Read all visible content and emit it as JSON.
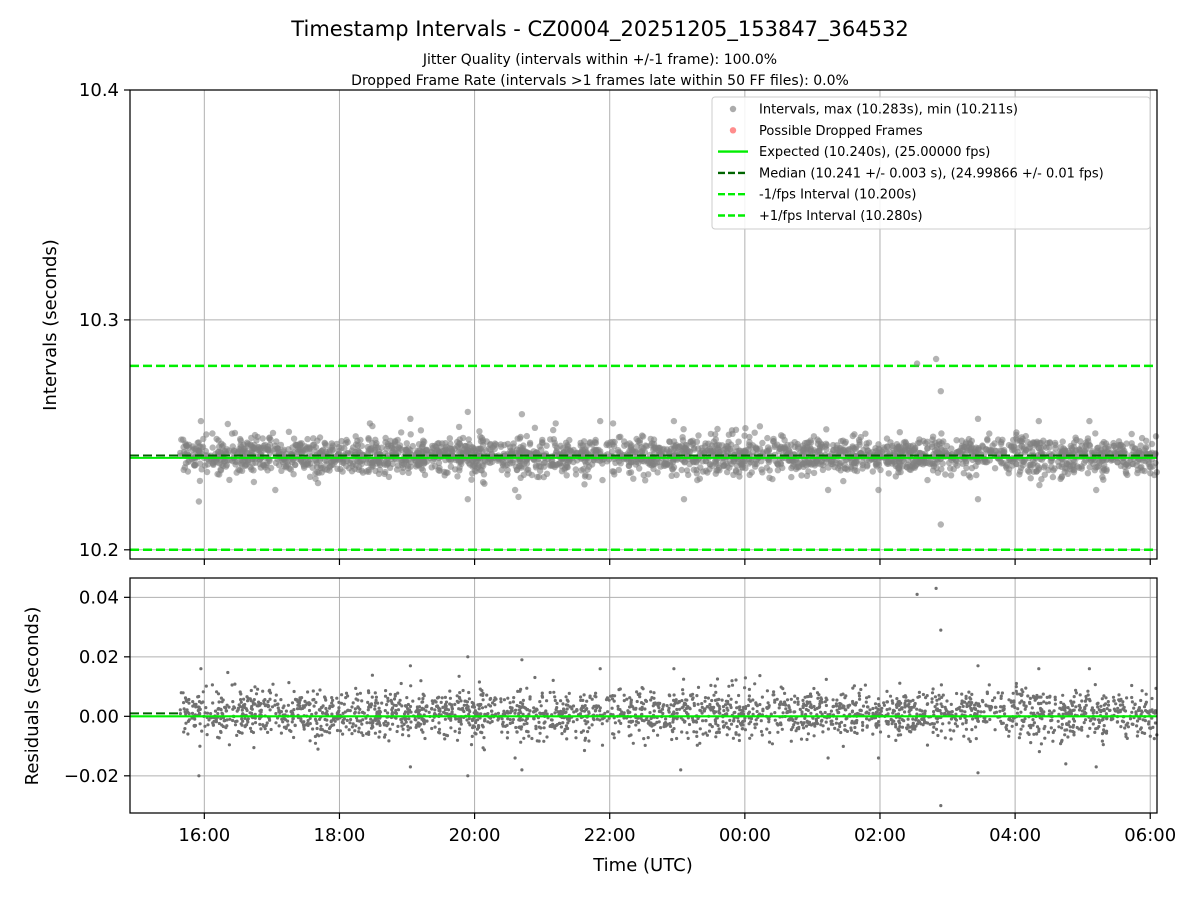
{
  "chart_data": [
    {
      "type": "scatter",
      "panel": "intervals",
      "title": "Timestamp Intervals - CZ0004_20251205_153847_364532",
      "subtitle_lines": [
        "Jitter Quality (intervals within +/-1 frame): 100.0%",
        "Dropped Frame Rate (intervals >1 frames late within 50 FF files): 0.0%"
      ],
      "ylabel": "Intervals (seconds)",
      "xlim_hours": [
        14.9,
        30.1
      ],
      "ylim": [
        10.196,
        10.4
      ],
      "yticks": [
        10.2,
        10.3,
        10.4
      ],
      "ytick_labels": [
        "10.2",
        "10.3",
        "10.4"
      ],
      "grid": true,
      "legend": {
        "placement": "top-right",
        "entries": [
          {
            "label": "Intervals, max (10.283s), min (10.211s)",
            "style": "marker",
            "color": "#888888"
          },
          {
            "label": "Possible Dropped Frames",
            "style": "marker",
            "color": "#ff5c5c"
          },
          {
            "label": "Expected (10.240s), (25.00000 fps)",
            "style": "solid",
            "color": "#00ee00"
          },
          {
            "label": "Median (10.241 +/- 0.003 s), (24.99866 +/- 0.01 fps)",
            "style": "dashed",
            "color": "#006400"
          },
          {
            "label": "-1/fps Interval (10.200s)",
            "style": "dashed",
            "color": "#00ee00"
          },
          {
            "label": "+1/fps Interval (10.280s)",
            "style": "dashed",
            "color": "#00ee00"
          }
        ]
      },
      "lines": {
        "expected": 10.24,
        "median": 10.241,
        "lower": 10.2,
        "upper": 10.28
      },
      "series_stats": {
        "x_start_hours": 15.64,
        "x_end_hours": 30.1,
        "count": 5090,
        "center": 10.241,
        "typical_spread": 0.004,
        "max": 10.283,
        "min": 10.211
      },
      "outliers": [
        {
          "x": 15.92,
          "y": 10.221
        },
        {
          "x": 15.95,
          "y": 10.256
        },
        {
          "x": 19.9,
          "y": 10.222
        },
        {
          "x": 19.9,
          "y": 10.26
        },
        {
          "x": 20.7,
          "y": 10.259
        },
        {
          "x": 20.65,
          "y": 10.223
        },
        {
          "x": 19.05,
          "y": 10.257
        },
        {
          "x": 22.95,
          "y": 10.256
        },
        {
          "x": 23.1,
          "y": 10.222
        },
        {
          "x": 26.55,
          "y": 10.281
        },
        {
          "x": 26.83,
          "y": 10.283
        },
        {
          "x": 26.9,
          "y": 10.269
        },
        {
          "x": 26.9,
          "y": 10.211
        },
        {
          "x": 27.45,
          "y": 10.222
        },
        {
          "x": 27.45,
          "y": 10.257
        },
        {
          "x": 28.35,
          "y": 10.256
        },
        {
          "x": 29.1,
          "y": 10.256
        },
        {
          "x": 29.2,
          "y": 10.226
        },
        {
          "x": 17.05,
          "y": 10.226
        },
        {
          "x": 18.45,
          "y": 10.255
        },
        {
          "x": 22.05,
          "y": 10.255
        },
        {
          "x": 21.2,
          "y": 10.255
        }
      ]
    },
    {
      "type": "scatter",
      "panel": "residuals",
      "xlabel": "Time (UTC)",
      "ylabel": "Residuals (seconds)",
      "xlim_hours": [
        14.9,
        30.1
      ],
      "ylim": [
        -0.0325,
        0.0465
      ],
      "yticks": [
        -0.02,
        0.0,
        0.02,
        0.04
      ],
      "ytick_labels": [
        "−0.02",
        "0.00",
        "0.02",
        "0.04"
      ],
      "xticks_hours": [
        16,
        18,
        20,
        22,
        24,
        26,
        28,
        30
      ],
      "xtick_labels": [
        "16:00",
        "18:00",
        "20:00",
        "22:00",
        "00:00",
        "02:00",
        "04:00",
        "06:00"
      ],
      "grid": true,
      "lines": {
        "zero": 0.0,
        "median_offset": 0.001
      },
      "series_stats": {
        "x_start_hours": 15.64,
        "x_end_hours": 30.1,
        "count": 5090,
        "center": 0.001,
        "typical_spread": 0.004
      },
      "outliers": [
        {
          "x": 15.92,
          "y": -0.02
        },
        {
          "x": 15.95,
          "y": 0.016
        },
        {
          "x": 19.05,
          "y": 0.017
        },
        {
          "x": 19.05,
          "y": -0.017
        },
        {
          "x": 19.9,
          "y": 0.02
        },
        {
          "x": 19.9,
          "y": -0.02
        },
        {
          "x": 20.7,
          "y": 0.019
        },
        {
          "x": 20.7,
          "y": -0.018
        },
        {
          "x": 22.95,
          "y": 0.016
        },
        {
          "x": 23.05,
          "y": -0.018
        },
        {
          "x": 26.55,
          "y": 0.041
        },
        {
          "x": 26.83,
          "y": 0.043
        },
        {
          "x": 26.9,
          "y": 0.029
        },
        {
          "x": 26.9,
          "y": -0.03
        },
        {
          "x": 27.45,
          "y": -0.019
        },
        {
          "x": 27.45,
          "y": 0.017
        },
        {
          "x": 28.35,
          "y": 0.016
        },
        {
          "x": 29.1,
          "y": 0.016
        },
        {
          "x": 29.2,
          "y": -0.017
        },
        {
          "x": 28.75,
          "y": -0.016
        }
      ]
    }
  ]
}
